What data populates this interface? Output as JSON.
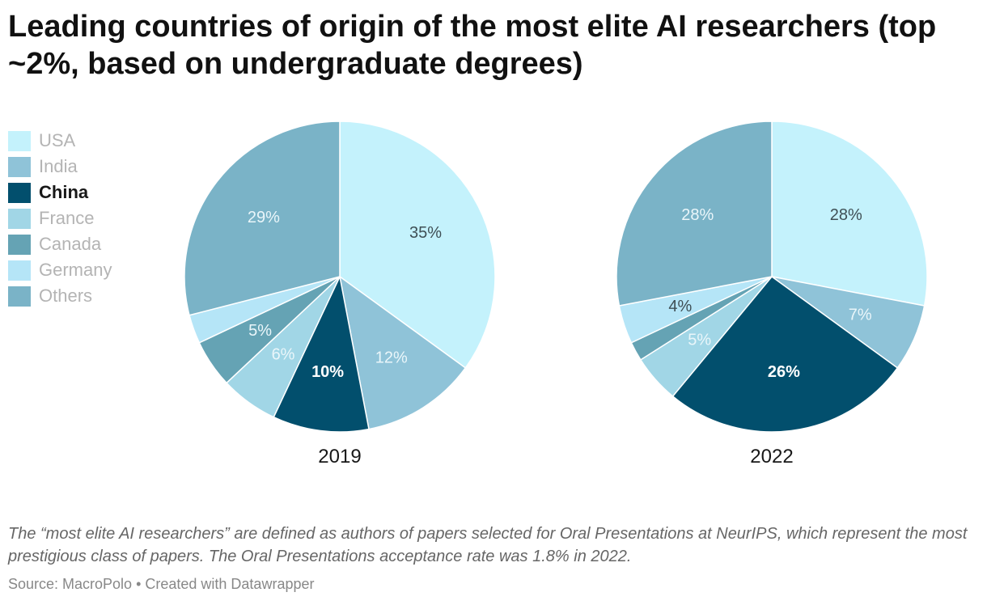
{
  "title": "Leading countries of origin of the most elite AI researchers (top ~2%, based on undergraduate degrees)",
  "legend": [
    {
      "label": "USA",
      "color": "#c4f2fc",
      "highlight": false
    },
    {
      "label": "India",
      "color": "#8fc3d8",
      "highlight": false
    },
    {
      "label": "China",
      "color": "#024f6d",
      "highlight": true
    },
    {
      "label": "France",
      "color": "#a1d6e6",
      "highlight": false
    },
    {
      "label": "Canada",
      "color": "#65a3b4",
      "highlight": false
    },
    {
      "label": "Germany",
      "color": "#b5e5f7",
      "highlight": false
    },
    {
      "label": "Others",
      "color": "#7ab3c7",
      "highlight": false
    }
  ],
  "chart_data": [
    {
      "type": "pie",
      "label": "2019",
      "slices": [
        {
          "category": "USA",
          "value": 35,
          "label": "35%"
        },
        {
          "category": "India",
          "value": 12,
          "label": "12%"
        },
        {
          "category": "China",
          "value": 10,
          "label": "10%"
        },
        {
          "category": "France",
          "value": 6,
          "label": "6%"
        },
        {
          "category": "Canada",
          "value": 5,
          "label": "5%"
        },
        {
          "category": "Germany",
          "value": 3,
          "label": ""
        },
        {
          "category": "Others",
          "value": 29,
          "label": "29%"
        }
      ]
    },
    {
      "type": "pie",
      "label": "2022",
      "slices": [
        {
          "category": "USA",
          "value": 28,
          "label": "28%"
        },
        {
          "category": "India",
          "value": 7,
          "label": "7%"
        },
        {
          "category": "China",
          "value": 26,
          "label": "26%"
        },
        {
          "category": "France",
          "value": 5,
          "label": "5%"
        },
        {
          "category": "Canada",
          "value": 2,
          "label": ""
        },
        {
          "category": "Germany",
          "value": 4,
          "label": "4%"
        },
        {
          "category": "Others",
          "value": 28,
          "label": "28%"
        }
      ]
    }
  ],
  "footnote": "The “most elite AI researchers” are defined as authors of papers selected for Oral Presentations at NeurIPS, which represent the most prestigious class of papers. The Oral Presentations acceptance rate was 1.8% in 2022.",
  "source": "Source: MacroPolo • Created with Datawrapper"
}
